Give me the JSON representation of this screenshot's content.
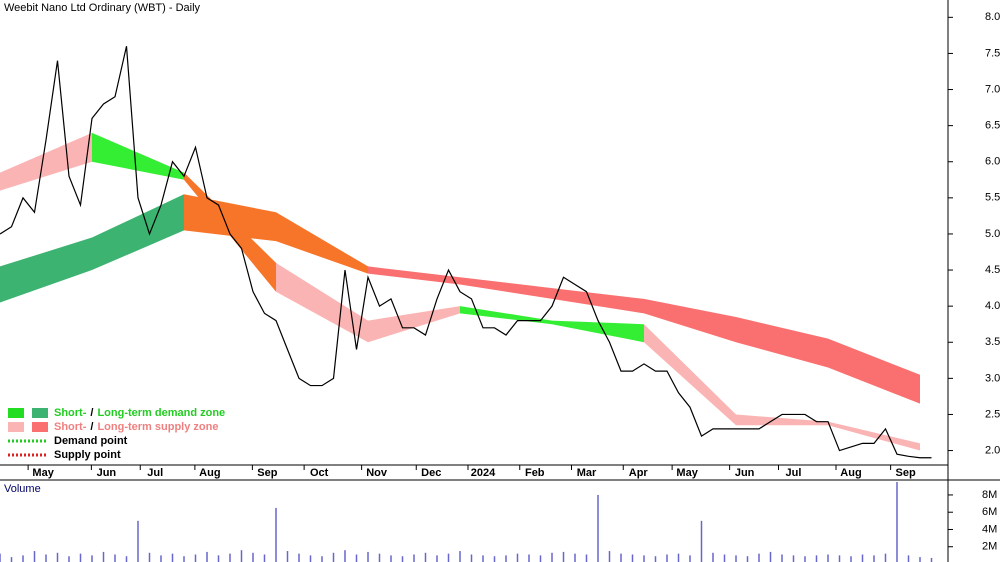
{
  "chart_data": {
    "type": "line",
    "title": "Weebit Nano Ltd Ordinary (WBT) - Daily",
    "volume_title": "Volume",
    "xlim": [
      0,
      328
    ],
    "xticks": [
      {
        "value": 15,
        "label": "May"
      },
      {
        "value": 37,
        "label": "Jun"
      },
      {
        "value": 54,
        "label": "Jul"
      },
      {
        "value": 73,
        "label": "Aug"
      },
      {
        "value": 93,
        "label": "Sep"
      },
      {
        "value": 111,
        "label": "Oct"
      },
      {
        "value": 131,
        "label": "Nov"
      },
      {
        "value": 150,
        "label": "Dec"
      },
      {
        "value": 168,
        "label": "2024"
      },
      {
        "value": 186,
        "label": "Feb"
      },
      {
        "value": 204,
        "label": "Mar"
      },
      {
        "value": 222,
        "label": "Apr"
      },
      {
        "value": 239,
        "label": "May"
      },
      {
        "value": 259,
        "label": "Jun"
      },
      {
        "value": 276,
        "label": "Jul"
      },
      {
        "value": 296,
        "label": "Aug"
      },
      {
        "value": 315,
        "label": "Sep"
      }
    ],
    "ylim": [
      1.8,
      8.24
    ],
    "yticks": [
      {
        "value": 2,
        "label": "2.0"
      },
      {
        "value": 2.5,
        "label": "2.5"
      },
      {
        "value": 3,
        "label": "3.0"
      },
      {
        "value": 3.5,
        "label": "3.5"
      },
      {
        "value": 4,
        "label": "4.0"
      },
      {
        "value": 4.5,
        "label": "4.5"
      },
      {
        "value": 5,
        "label": "5.0"
      },
      {
        "value": 5.5,
        "label": "5.5"
      },
      {
        "value": 6,
        "label": "6.0"
      },
      {
        "value": 6.5,
        "label": "6.5"
      },
      {
        "value": 7,
        "label": "7.0"
      },
      {
        "value": 7.5,
        "label": "7.5"
      },
      {
        "value": 8,
        "label": "8.0"
      }
    ],
    "vlim": [
      0,
      9.5
    ],
    "vticks": [
      {
        "value": 2,
        "label": "2M"
      },
      {
        "value": 4,
        "label": "4M"
      },
      {
        "value": 6,
        "label": "6M"
      },
      {
        "value": 8,
        "label": "8M"
      }
    ],
    "series": [
      {
        "name": "Price",
        "color": "#000000",
        "x": [
          0,
          4,
          8,
          12,
          16,
          20,
          24,
          28,
          32,
          36,
          40,
          44,
          48,
          52,
          56,
          60,
          64,
          68,
          72,
          76,
          80,
          84,
          88,
          92,
          96,
          100,
          104,
          108,
          112,
          116,
          120,
          124,
          128,
          132,
          136,
          140,
          144,
          148,
          152,
          156,
          160,
          164,
          168,
          172,
          176,
          180,
          184,
          188,
          192,
          196,
          200,
          204,
          208,
          212,
          216,
          220,
          224,
          228,
          232,
          236,
          240,
          244,
          248,
          252,
          256,
          260,
          264,
          268,
          272,
          276,
          280,
          284,
          288,
          292,
          296,
          300,
          304,
          308,
          312,
          316,
          320,
          324
        ],
        "values": [
          5.0,
          5.1,
          5.5,
          5.3,
          6.3,
          7.4,
          5.8,
          5.4,
          6.6,
          6.8,
          6.9,
          7.6,
          5.5,
          5.0,
          5.4,
          6.0,
          5.8,
          6.2,
          5.5,
          5.4,
          5.0,
          4.8,
          4.2,
          3.9,
          3.8,
          3.4,
          3.0,
          2.9,
          2.9,
          3.0,
          4.5,
          3.4,
          4.4,
          4.0,
          4.1,
          3.7,
          3.7,
          3.6,
          4.1,
          4.5,
          4.2,
          4.1,
          3.7,
          3.7,
          3.6,
          3.8,
          3.8,
          3.8,
          4.0,
          4.4,
          4.3,
          4.2,
          3.8,
          3.5,
          3.1,
          3.1,
          3.2,
          3.1,
          3.1,
          2.8,
          2.6,
          2.2,
          2.3,
          2.3,
          2.3,
          2.3,
          2.3,
          2.4,
          2.5,
          2.5,
          2.5,
          2.4,
          2.4,
          2.0,
          2.05,
          2.1,
          2.1,
          2.3,
          1.95,
          1.92,
          1.9,
          1.9
        ],
        "volume": [
          1.2,
          0.8,
          1.0,
          1.5,
          1.1,
          1.3,
          0.9,
          1.2,
          1.0,
          1.4,
          1.1,
          0.9,
          5.0,
          1.3,
          1.0,
          1.2,
          0.9,
          1.1,
          1.4,
          1.0,
          1.2,
          1.6,
          1.3,
          1.1,
          6.5,
          1.5,
          1.2,
          1.0,
          0.9,
          1.3,
          1.6,
          1.1,
          1.4,
          1.2,
          1.0,
          0.9,
          1.1,
          1.3,
          1.0,
          1.2,
          1.5,
          1.1,
          1.0,
          0.9,
          1.0,
          1.2,
          1.1,
          1.0,
          1.3,
          1.4,
          1.2,
          1.1,
          8.0,
          1.5,
          1.2,
          1.1,
          1.0,
          0.9,
          1.1,
          1.2,
          1.0,
          5.0,
          1.3,
          1.1,
          1.0,
          0.9,
          1.2,
          1.4,
          1.1,
          1.0,
          0.9,
          1.0,
          1.1,
          1.0,
          0.9,
          1.1,
          1.0,
          1.2,
          9.5,
          1.0,
          0.8,
          0.7
        ]
      }
    ],
    "bands": [
      {
        "kind": "long",
        "x": [
          0,
          32,
          64,
          96,
          128,
          160,
          192,
          224,
          256,
          288,
          320
        ],
        "upper": [
          4.55,
          4.95,
          5.55,
          5.3,
          4.55,
          4.4,
          4.25,
          4.1,
          3.85,
          3.55,
          3.05
        ],
        "lower": [
          4.05,
          4.5,
          5.05,
          4.9,
          4.45,
          4.3,
          4.1,
          3.9,
          3.5,
          3.15,
          2.65
        ],
        "segment_colors": [
          "#3cb371",
          "#3cb371",
          "#f77529",
          "#f77529",
          "#fa7070",
          "#fa7070",
          "#fa7070",
          "#fa7070",
          "#fa7070",
          "#fa7070"
        ]
      },
      {
        "kind": "short",
        "x": [
          0,
          32,
          64,
          96,
          128,
          160,
          192,
          224,
          256,
          288,
          320
        ],
        "upper": [
          5.85,
          6.4,
          5.85,
          4.6,
          3.8,
          4.0,
          3.8,
          3.75,
          2.5,
          2.4,
          2.1
        ],
        "lower": [
          5.6,
          6.0,
          5.75,
          4.2,
          3.5,
          3.9,
          3.75,
          3.5,
          2.35,
          2.35,
          2.0
        ],
        "segment_colors": [
          "#fbb4b4",
          "#33ee33",
          "#f77529",
          "#fbb4b4",
          "#fbb4b4",
          "#33ee33",
          "#33ee33",
          "#fbb4b4",
          "#fbb4b4",
          "#fbb4b4"
        ]
      }
    ],
    "legend": [
      {
        "short": "Short-",
        "sep": "/",
        "long": "Long-term demand zone",
        "short_color": "#22dd22",
        "long_color": "#3cb371",
        "text_color": "#22cc22"
      },
      {
        "short": "Short-",
        "sep": "/",
        "long": "Long-term supply zone",
        "short_color": "#fbb4b4",
        "long_color": "#fa7070",
        "text_color": "#f08080"
      },
      {
        "label": "Demand point",
        "color": "#22cc22"
      },
      {
        "label": "Supply point",
        "color": "#dd2222"
      }
    ]
  }
}
